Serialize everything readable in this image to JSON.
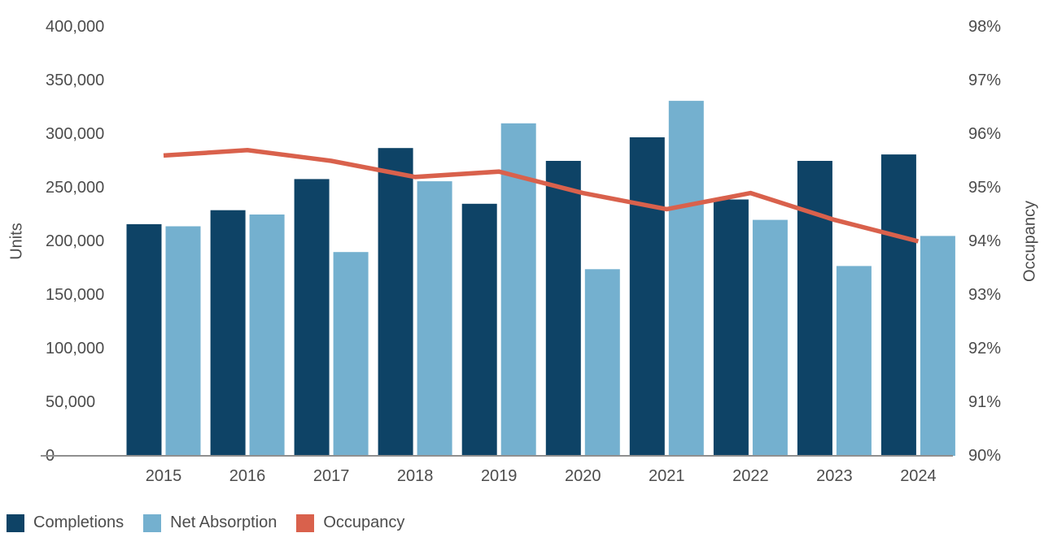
{
  "chart_data": {
    "type": "combo-bar-line",
    "title": "",
    "categories": [
      "2015",
      "2016",
      "2017",
      "2018",
      "2019",
      "2020",
      "2021",
      "2022",
      "2023",
      "2024"
    ],
    "series": [
      {
        "name": "Completions",
        "type": "bar",
        "axis": "left",
        "color": "#0e4366",
        "values": [
          216000,
          229000,
          258000,
          287000,
          235000,
          275000,
          297000,
          239000,
          275000,
          281000
        ]
      },
      {
        "name": "Net Absorption",
        "type": "bar",
        "axis": "left",
        "color": "#74b0cf",
        "values": [
          214000,
          225000,
          190000,
          256000,
          310000,
          174000,
          331000,
          220000,
          177000,
          205000
        ]
      },
      {
        "name": "Occupancy",
        "type": "line",
        "axis": "right",
        "color": "#d9614c",
        "values": [
          95.6,
          95.7,
          95.5,
          95.2,
          95.3,
          94.9,
          94.6,
          94.9,
          94.4,
          94.0
        ]
      }
    ],
    "left_axis": {
      "label": "Units",
      "min": 0,
      "max": 400000,
      "tick_step": 50000,
      "tick_labels": [
        "0",
        "50,000",
        "100,000",
        "150,000",
        "200,000",
        "250,000",
        "300,000",
        "350,000",
        "400,000"
      ]
    },
    "right_axis": {
      "label": "Occupancy",
      "min": 90,
      "max": 98,
      "tick_step": 1,
      "tick_labels": [
        "90%",
        "91%",
        "92%",
        "93%",
        "94%",
        "95%",
        "96%",
        "97%",
        "98%"
      ]
    },
    "grid": "off",
    "legend_position": "bottom-left",
    "axis_line_color": "#8f8f8f",
    "text_color": "#4c4c4c"
  }
}
